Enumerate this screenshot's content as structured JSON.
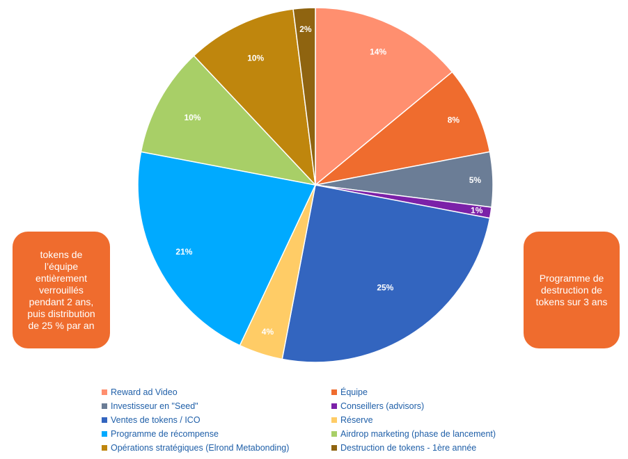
{
  "chart_data": {
    "type": "pie",
    "title": "",
    "slices": [
      {
        "name": "Reward ad Video",
        "value": 14,
        "label": "14%",
        "color": "#ff8f6f"
      },
      {
        "name": "Équipe",
        "value": 8,
        "label": "8%",
        "color": "#ef6c2e"
      },
      {
        "name": "Investisseur en \"Seed\"",
        "value": 5,
        "label": "5%",
        "color": "#6b7d96"
      },
      {
        "name": "Conseillers (advisors)",
        "value": 1,
        "label": "1%",
        "color": "#7b21a8"
      },
      {
        "name": "Ventes de tokens / ICO",
        "value": 25,
        "label": "25%",
        "color": "#3365bf"
      },
      {
        "name": "Réserve",
        "value": 4,
        "label": "4%",
        "color": "#ffcc66"
      },
      {
        "name": "Programme de récompense",
        "value": 21,
        "label": "21%",
        "color": "#00aaff"
      },
      {
        "name": "Airdrop marketing (phase de lancement)",
        "value": 10,
        "label": "10%",
        "color": "#a8cf67"
      },
      {
        "name": "Opérations stratégiques (Elrond Metabonding)",
        "value": 10,
        "label": "10%",
        "color": "#bf860d"
      },
      {
        "name": "Destruction de tokens -  1ère année",
        "value": 2,
        "label": "2%",
        "color": "#8f6410"
      }
    ],
    "legend_position": "bottom"
  },
  "notes": {
    "left": "tokens de l’équipe entièrement verrouillés pendant 2 ans, puis distribution de 25 % par an",
    "right": "Programme de destruction de tokens sur 3 ans"
  }
}
